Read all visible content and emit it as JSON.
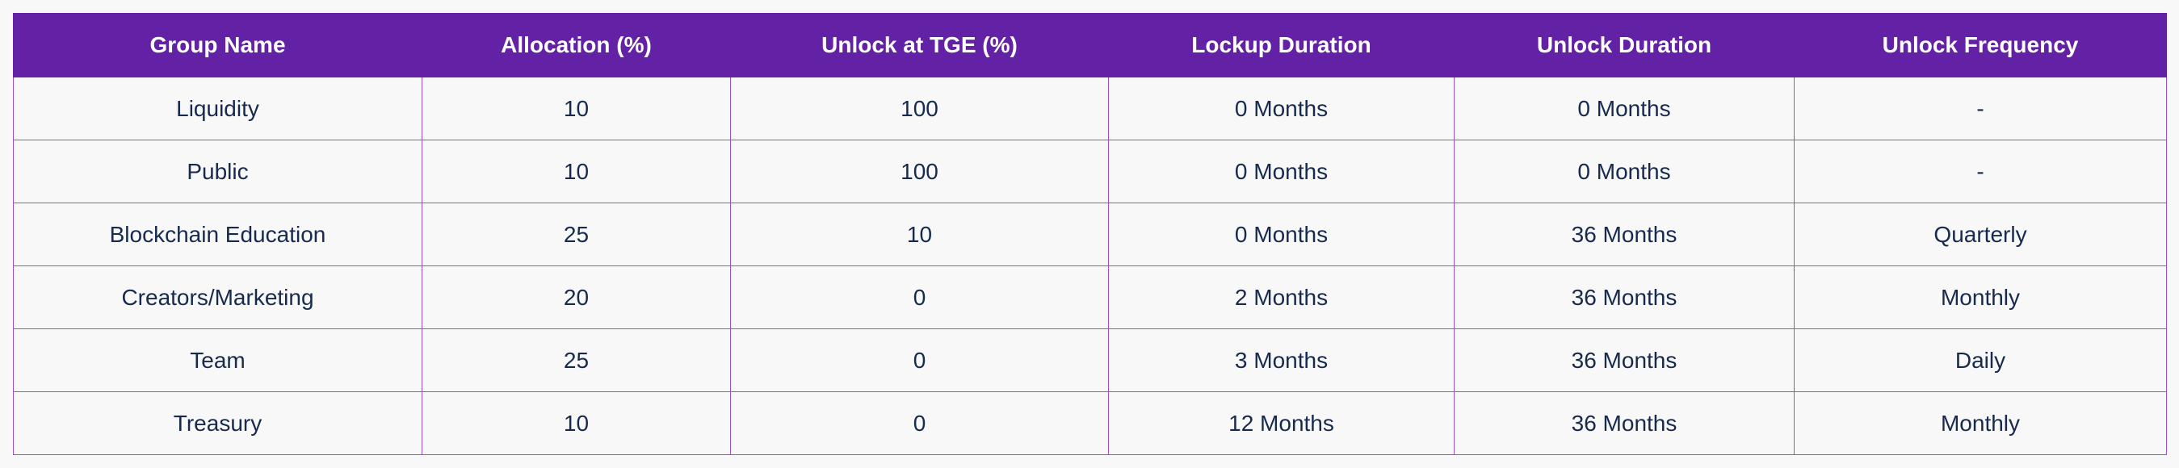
{
  "table": {
    "headers": [
      "Group Name",
      "Allocation (%)",
      "Unlock at TGE (%)",
      "Lockup Duration",
      "Unlock Duration",
      "Unlock Frequency"
    ],
    "rows": [
      [
        "Liquidity",
        "10",
        "100",
        "0 Months",
        "0 Months",
        "-"
      ],
      [
        "Public",
        "10",
        "100",
        "0 Months",
        "0 Months",
        "-"
      ],
      [
        "Blockchain Education",
        "25",
        "10",
        "0 Months",
        "36 Months",
        "Quarterly"
      ],
      [
        "Creators/Marketing",
        "20",
        "0",
        "2 Months",
        "36 Months",
        "Monthly"
      ],
      [
        "Team",
        "25",
        "0",
        "3 Months",
        "36 Months",
        "Daily"
      ],
      [
        "Treasury",
        "10",
        "0",
        "12 Months",
        "36 Months",
        "Monthly"
      ]
    ]
  },
  "colors": {
    "header_bg": "#6321a6",
    "header_text": "#ffffff",
    "cell_text": "#172a4e",
    "border": "#9a4fd6",
    "cell_bg": "#f8f8f8"
  }
}
